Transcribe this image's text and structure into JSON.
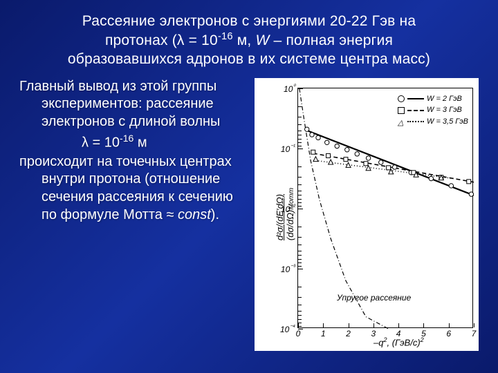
{
  "slide": {
    "title_l1": "Рассеяние электронов с энергиями 20-22 Гэв на",
    "title_l2_a": "протонах (λ = 10",
    "title_l2_exp": "-16",
    "title_l2_b": " м, ",
    "title_l2_W": "W",
    "title_l2_c": " – полная энергия",
    "title_l3": "образовавшихся адронов в их системе центра масс)",
    "body_p1": "Главный вывод из этой группы экспериментов: рассеяние электронов с длиной волны",
    "body_lambda_a": "λ = 10",
    "body_lambda_exp": "-16",
    "body_lambda_b": " м",
    "body_p2_a": "происходит на точечных центрах внутри протона (отношение сечения рассеяния к сечению по формуле Мотта ≈ ",
    "body_p2_const": "const",
    "body_p2_b": ")."
  },
  "chart": {
    "type": "scatter-log",
    "background_color": "#ffffff",
    "line_color": "#000000",
    "xlabel_a": "–q",
    "xlabel_sup": "2",
    "xlabel_b": ", (ГэВ/с)",
    "xlabel_sup2": "2",
    "ylabel": "d²σ/(dE'dΩ) / (dσ/dΩ)Мотт",
    "annot_elastic": "Упругое рассеяние",
    "legend": [
      {
        "marker": "circle",
        "line": "solid",
        "label": "W = 2 ГэВ"
      },
      {
        "marker": "square",
        "line": "dash",
        "label": "W = 3 ГэВ"
      },
      {
        "marker": "triangle",
        "line": "dot",
        "label": "W = 3,5 ГэВ"
      }
    ],
    "ylim_log10": [
      -4,
      0
    ],
    "yticks_log10": [
      0,
      -1,
      -2,
      -3,
      -4
    ],
    "ytick_labels": [
      "10⁰",
      "10⁻¹",
      "10⁻²",
      "10⁻³",
      "10⁻⁴"
    ],
    "xlim": [
      0,
      7
    ],
    "xticks": [
      0,
      1,
      2,
      3,
      4,
      5,
      6,
      7
    ],
    "series": {
      "W2_line": {
        "x1": 0.35,
        "y1_log": -0.7,
        "x2": 7.0,
        "y2_log": -1.78,
        "style": "solid",
        "width": 2.2
      },
      "W3_line": {
        "x1": 0.6,
        "y1_log": -1.08,
        "x2": 7.0,
        "y2_log": -1.56,
        "style": "dash",
        "width": 1.6
      },
      "W35_line": {
        "x1": 0.7,
        "y1_log": -1.2,
        "x2": 6.2,
        "y2_log": -1.5,
        "style": "dot",
        "width": 1.6
      },
      "elastic_curve": [
        {
          "x": 0.05,
          "y_log": 0.0
        },
        {
          "x": 0.25,
          "y_log": -0.55
        },
        {
          "x": 0.5,
          "y_log": -1.2
        },
        {
          "x": 0.85,
          "y_log": -1.85
        },
        {
          "x": 1.3,
          "y_log": -2.5
        },
        {
          "x": 1.9,
          "y_log": -3.2
        },
        {
          "x": 2.7,
          "y_log": -3.8
        },
        {
          "x": 3.6,
          "y_log": -4.0
        }
      ],
      "W2_points": [
        {
          "x": 0.35,
          "y_log": -0.68
        },
        {
          "x": 0.55,
          "y_log": -0.77
        },
        {
          "x": 0.8,
          "y_log": -0.82
        },
        {
          "x": 1.15,
          "y_log": -0.9
        },
        {
          "x": 1.55,
          "y_log": -0.96
        },
        {
          "x": 1.95,
          "y_log": -1.02
        },
        {
          "x": 2.35,
          "y_log": -1.09
        },
        {
          "x": 2.8,
          "y_log": -1.16
        },
        {
          "x": 3.3,
          "y_log": -1.23
        },
        {
          "x": 3.85,
          "y_log": -1.31
        },
        {
          "x": 4.5,
          "y_log": -1.4
        },
        {
          "x": 5.3,
          "y_log": -1.5
        },
        {
          "x": 6.1,
          "y_log": -1.62
        },
        {
          "x": 6.9,
          "y_log": -1.76
        }
      ],
      "W3_points": [
        {
          "x": 0.6,
          "y_log": -1.06
        },
        {
          "x": 1.2,
          "y_log": -1.12
        },
        {
          "x": 1.9,
          "y_log": -1.18
        },
        {
          "x": 2.7,
          "y_log": -1.25
        },
        {
          "x": 3.6,
          "y_log": -1.32
        },
        {
          "x": 4.6,
          "y_log": -1.4
        },
        {
          "x": 5.7,
          "y_log": -1.48
        },
        {
          "x": 6.8,
          "y_log": -1.55
        }
      ],
      "W35_points": [
        {
          "x": 0.7,
          "y_log": -1.18
        },
        {
          "x": 1.3,
          "y_log": -1.23
        },
        {
          "x": 2.0,
          "y_log": -1.28
        },
        {
          "x": 2.8,
          "y_log": -1.33
        },
        {
          "x": 3.7,
          "y_log": -1.39
        },
        {
          "x": 4.7,
          "y_log": -1.44
        },
        {
          "x": 5.7,
          "y_log": -1.49
        }
      ]
    }
  }
}
